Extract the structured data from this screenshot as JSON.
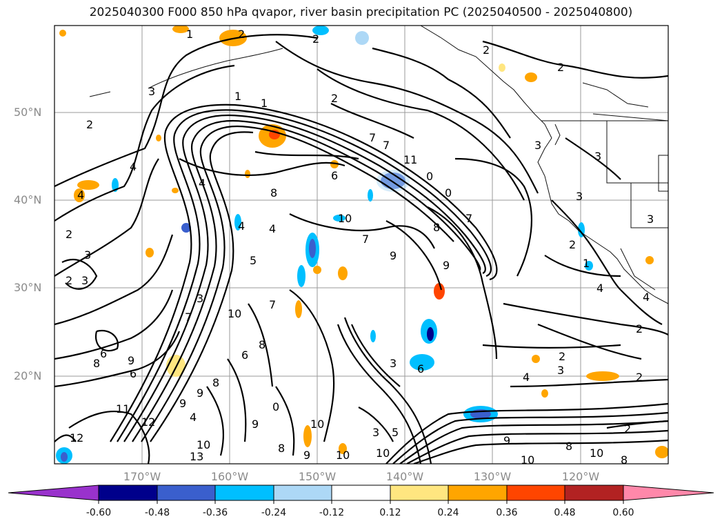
{
  "title": "2025040300 F000 850 hPa qvapor, river basin precipitation PC (2025040500 - 2025040800)",
  "lat_labels": [
    "50°N",
    "40°N",
    "30°N",
    "20°N"
  ],
  "lon_labels": [
    "170°W",
    "160°W",
    "150°W",
    "140°W",
    "130°W",
    "120°W"
  ],
  "colorbar": {
    "ticks": [
      "-0.60",
      "-0.48",
      "-0.36",
      "-0.24",
      "-0.12",
      "0.12",
      "0.24",
      "0.36",
      "0.48",
      "0.60"
    ],
    "colors": [
      "#9932cc",
      "#00008b",
      "#3a5fcd",
      "#00bfff",
      "#add8f6",
      "#ffffff",
      "#ffe680",
      "#ffa500",
      "#ff4500",
      "#b22222",
      "#ff88aa"
    ]
  },
  "contour_labels": [
    "1",
    "2",
    "3",
    "4",
    "5",
    "6",
    "7",
    "8",
    "9",
    "10",
    "11",
    "12",
    "13"
  ]
}
